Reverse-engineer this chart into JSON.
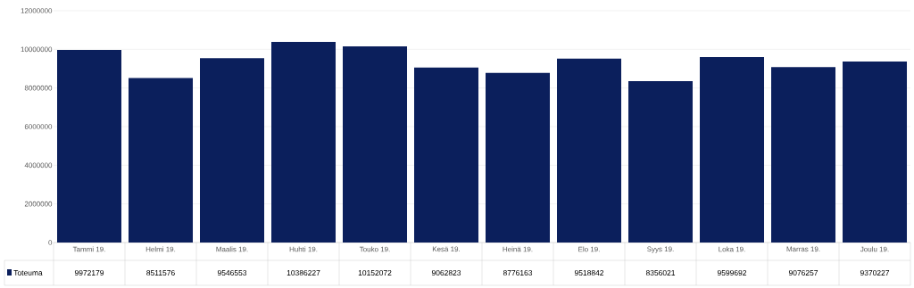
{
  "chart_data": {
    "type": "bar",
    "categories": [
      "Tammi 19.",
      "Helmi 19.",
      "Maalis 19.",
      "Huhti 19.",
      "Touko 19.",
      "Kesä 19.",
      "Heinä 19.",
      "Elo 19.",
      "Syys 19.",
      "Loka 19.",
      "Marras 19.",
      "Joulu 19."
    ],
    "series": [
      {
        "name": "Toteuma",
        "color": "#0b1f5c",
        "values": [
          9972179,
          8511576,
          9546553,
          10386227,
          10152072,
          9062823,
          8776163,
          9518842,
          8356021,
          9599692,
          9076257,
          9370227
        ]
      }
    ],
    "ylim": [
      0,
      12000000
    ],
    "yticks": [
      0,
      2000000,
      4000000,
      6000000,
      8000000,
      10000000,
      12000000
    ],
    "grid": "y",
    "legend": "bottom",
    "data_labels": true
  }
}
